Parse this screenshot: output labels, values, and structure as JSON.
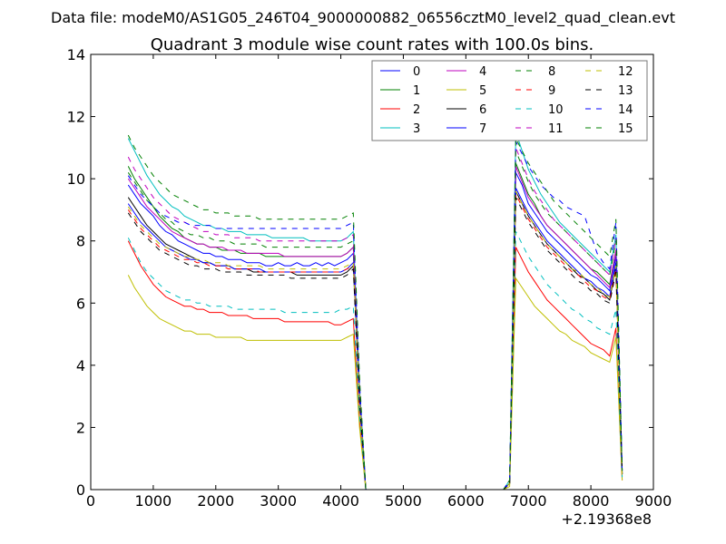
{
  "chart_data": {
    "type": "line",
    "suptitle": "Data file: modeM0/AS1G05_246T04_9000000882_06556cztM0_level2_quad_clean.evt",
    "title": "Quadrant 3 module wise count rates with 100.0s bins.",
    "xlabel": "",
    "ylabel": "",
    "xlim": [
      0,
      9000
    ],
    "ylim": [
      0,
      14
    ],
    "x_ticks": [
      0,
      1000,
      2000,
      3000,
      4000,
      5000,
      6000,
      7000,
      8000,
      9000
    ],
    "x_tick_labels": [
      "0",
      "1000",
      "2000",
      "3000",
      "4000",
      "5000",
      "6000",
      "7000",
      "8000",
      "9000"
    ],
    "y_ticks": [
      0,
      2,
      4,
      6,
      8,
      10,
      12,
      14
    ],
    "y_tick_labels": [
      "0",
      "2",
      "4",
      "6",
      "8",
      "10",
      "12",
      "14"
    ],
    "x_offset_label": "+2.19368e8",
    "grid": false,
    "legend_position": "top-right",
    "legend_columns": 4,
    "x": [
      600,
      700,
      800,
      900,
      1000,
      1100,
      1200,
      1300,
      1400,
      1500,
      1600,
      1700,
      1800,
      1900,
      2000,
      2100,
      2200,
      2300,
      2400,
      2500,
      2600,
      2700,
      2800,
      2900,
      3000,
      3100,
      3200,
      3300,
      3400,
      3500,
      3600,
      3700,
      3800,
      3900,
      4000,
      4100,
      4200,
      4300,
      4400,
      6600,
      6700,
      6800,
      6900,
      7000,
      7100,
      7200,
      7300,
      7400,
      7500,
      7600,
      7700,
      7800,
      7900,
      8000,
      8100,
      8200,
      8300,
      8400,
      8500
    ],
    "series": [
      {
        "name": "0",
        "color": "#0000ff",
        "style": "solid",
        "values": [
          9.8,
          9.5,
          9.2,
          9.0,
          8.8,
          8.5,
          8.3,
          8.2,
          8.0,
          7.9,
          7.8,
          7.7,
          7.6,
          7.6,
          7.5,
          7.5,
          7.4,
          7.4,
          7.4,
          7.3,
          7.3,
          7.3,
          7.2,
          7.2,
          7.3,
          7.2,
          7.2,
          7.3,
          7.2,
          7.2,
          7.3,
          7.2,
          7.3,
          7.2,
          7.3,
          7.4,
          7.6,
          3.0,
          0.0,
          0.0,
          0.2,
          10.2,
          9.8,
          9.2,
          8.9,
          8.6,
          8.3,
          8.1,
          7.9,
          7.7,
          7.5,
          7.3,
          7.1,
          6.9,
          6.8,
          6.6,
          6.4,
          7.5,
          0.5
        ]
      },
      {
        "name": "1",
        "color": "#008000",
        "style": "solid",
        "values": [
          10.4,
          10.0,
          9.7,
          9.4,
          9.1,
          8.8,
          8.6,
          8.4,
          8.3,
          8.1,
          8.0,
          7.9,
          7.9,
          7.8,
          7.8,
          7.7,
          7.7,
          7.7,
          7.6,
          7.6,
          7.6,
          7.6,
          7.5,
          7.5,
          7.5,
          7.5,
          7.5,
          7.5,
          7.5,
          7.5,
          7.5,
          7.5,
          7.5,
          7.5,
          7.5,
          7.6,
          7.8,
          3.1,
          0.0,
          0.0,
          0.2,
          10.5,
          10.0,
          9.5,
          9.2,
          8.8,
          8.5,
          8.3,
          8.1,
          7.9,
          7.7,
          7.5,
          7.3,
          7.1,
          7.0,
          6.8,
          6.6,
          7.7,
          0.5
        ]
      },
      {
        "name": "2",
        "color": "#ff0000",
        "style": "solid",
        "values": [
          8.0,
          7.6,
          7.2,
          6.9,
          6.6,
          6.4,
          6.2,
          6.1,
          6.0,
          5.9,
          5.9,
          5.8,
          5.8,
          5.7,
          5.7,
          5.7,
          5.6,
          5.6,
          5.6,
          5.6,
          5.5,
          5.5,
          5.5,
          5.5,
          5.5,
          5.4,
          5.4,
          5.4,
          5.4,
          5.4,
          5.4,
          5.4,
          5.4,
          5.3,
          5.3,
          5.4,
          5.5,
          2.2,
          0.0,
          0.0,
          0.2,
          7.8,
          7.4,
          7.0,
          6.7,
          6.4,
          6.1,
          5.9,
          5.7,
          5.5,
          5.3,
          5.1,
          4.9,
          4.7,
          4.6,
          4.5,
          4.3,
          5.2,
          0.3
        ]
      },
      {
        "name": "3",
        "color": "#00bfbf",
        "style": "solid",
        "values": [
          11.3,
          10.9,
          10.5,
          10.1,
          9.8,
          9.5,
          9.3,
          9.1,
          9.0,
          8.8,
          8.7,
          8.6,
          8.5,
          8.5,
          8.4,
          8.4,
          8.3,
          8.3,
          8.3,
          8.2,
          8.2,
          8.2,
          8.2,
          8.1,
          8.1,
          8.1,
          8.1,
          8.1,
          8.1,
          8.0,
          8.0,
          8.0,
          8.0,
          8.0,
          8.0,
          8.1,
          8.3,
          3.3,
          0.0,
          0.0,
          0.3,
          11.5,
          10.9,
          10.3,
          9.9,
          9.5,
          9.2,
          8.9,
          8.6,
          8.4,
          8.2,
          8.0,
          7.8,
          7.6,
          7.4,
          7.2,
          7.0,
          8.2,
          0.6
        ]
      },
      {
        "name": "4",
        "color": "#bf00bf",
        "style": "solid",
        "values": [
          10.0,
          9.7,
          9.4,
          9.1,
          8.9,
          8.7,
          8.5,
          8.3,
          8.2,
          8.1,
          8.0,
          7.9,
          7.9,
          7.8,
          7.8,
          7.8,
          7.7,
          7.7,
          7.7,
          7.6,
          7.6,
          7.6,
          7.6,
          7.6,
          7.6,
          7.5,
          7.5,
          7.5,
          7.5,
          7.5,
          7.5,
          7.5,
          7.5,
          7.5,
          7.5,
          7.6,
          7.8,
          3.1,
          0.0,
          0.0,
          0.2,
          10.4,
          9.9,
          9.4,
          9.1,
          8.8,
          8.5,
          8.3,
          8.1,
          7.9,
          7.7,
          7.5,
          7.3,
          7.1,
          6.9,
          6.7,
          6.5,
          7.7,
          0.5
        ]
      },
      {
        "name": "5",
        "color": "#bfbf00",
        "style": "solid",
        "values": [
          6.9,
          6.5,
          6.2,
          5.9,
          5.7,
          5.5,
          5.4,
          5.3,
          5.2,
          5.1,
          5.1,
          5.0,
          5.0,
          5.0,
          4.9,
          4.9,
          4.9,
          4.9,
          4.9,
          4.8,
          4.8,
          4.8,
          4.8,
          4.8,
          4.8,
          4.8,
          4.8,
          4.8,
          4.8,
          4.8,
          4.8,
          4.8,
          4.8,
          4.8,
          4.8,
          4.9,
          5.0,
          2.0,
          0.0,
          0.0,
          0.1,
          6.8,
          6.5,
          6.2,
          5.9,
          5.7,
          5.5,
          5.3,
          5.1,
          5.0,
          4.8,
          4.7,
          4.6,
          4.4,
          4.3,
          4.2,
          4.1,
          4.9,
          0.3
        ]
      },
      {
        "name": "6",
        "color": "#000000",
        "style": "solid",
        "values": [
          9.4,
          9.1,
          8.8,
          8.5,
          8.3,
          8.1,
          7.9,
          7.8,
          7.7,
          7.6,
          7.5,
          7.4,
          7.3,
          7.3,
          7.2,
          7.2,
          7.2,
          7.1,
          7.1,
          7.1,
          7.0,
          7.0,
          7.0,
          7.0,
          7.0,
          7.0,
          7.0,
          6.9,
          6.9,
          6.9,
          6.9,
          6.9,
          6.9,
          6.9,
          6.9,
          7.0,
          7.2,
          2.9,
          0.0,
          0.0,
          0.2,
          9.6,
          9.2,
          8.8,
          8.5,
          8.2,
          7.9,
          7.7,
          7.5,
          7.3,
          7.1,
          6.9,
          6.8,
          6.6,
          6.4,
          6.3,
          6.1,
          7.2,
          0.5
        ]
      },
      {
        "name": "7",
        "color": "#0000ff",
        "style": "solid",
        "values": [
          9.2,
          8.9,
          8.6,
          8.4,
          8.2,
          8.0,
          7.8,
          7.7,
          7.6,
          7.5,
          7.4,
          7.4,
          7.3,
          7.3,
          7.2,
          7.2,
          7.2,
          7.1,
          7.1,
          7.1,
          7.1,
          7.1,
          7.0,
          7.0,
          7.0,
          7.0,
          7.0,
          7.0,
          7.0,
          7.0,
          7.0,
          7.0,
          7.0,
          7.0,
          7.0,
          7.1,
          7.3,
          2.9,
          0.0,
          0.0,
          0.2,
          9.7,
          9.3,
          8.9,
          8.6,
          8.3,
          8.0,
          7.8,
          7.6,
          7.4,
          7.2,
          7.0,
          6.8,
          6.7,
          6.5,
          6.4,
          6.2,
          7.3,
          0.5
        ]
      },
      {
        "name": "8",
        "color": "#008000",
        "style": "dashed",
        "values": [
          10.2,
          9.9,
          9.6,
          9.3,
          9.1,
          8.9,
          8.7,
          8.6,
          8.4,
          8.3,
          8.2,
          8.2,
          8.1,
          8.1,
          8.0,
          8.0,
          8.0,
          7.9,
          7.9,
          7.9,
          7.9,
          7.9,
          7.8,
          7.8,
          7.8,
          7.8,
          7.8,
          7.8,
          7.8,
          7.8,
          7.8,
          7.8,
          7.8,
          7.8,
          7.8,
          7.9,
          8.0,
          3.2,
          0.0,
          0.0,
          0.3,
          10.9,
          10.4,
          9.9,
          9.5,
          9.2,
          8.9,
          8.7,
          8.5,
          8.3,
          8.1,
          7.9,
          7.7,
          7.5,
          7.3,
          7.1,
          6.9,
          8.0,
          0.6
        ]
      },
      {
        "name": "9",
        "color": "#ff0000",
        "style": "dashed",
        "values": [
          9.0,
          8.7,
          8.4,
          8.2,
          8.0,
          7.8,
          7.7,
          7.6,
          7.5,
          7.4,
          7.4,
          7.3,
          7.3,
          7.2,
          7.2,
          7.2,
          7.1,
          7.1,
          7.1,
          7.1,
          7.1,
          7.0,
          7.0,
          7.0,
          7.0,
          7.0,
          7.0,
          7.0,
          7.0,
          7.0,
          7.0,
          7.0,
          7.0,
          7.0,
          7.0,
          7.1,
          7.2,
          2.9,
          0.0,
          0.0,
          0.2,
          9.5,
          9.1,
          8.7,
          8.4,
          8.1,
          7.8,
          7.6,
          7.4,
          7.2,
          7.0,
          6.9,
          6.7,
          6.5,
          6.4,
          6.2,
          6.1,
          7.1,
          0.5
        ]
      },
      {
        "name": "10",
        "color": "#00bfbf",
        "style": "dashed",
        "values": [
          8.1,
          7.7,
          7.3,
          7.0,
          6.8,
          6.6,
          6.4,
          6.3,
          6.2,
          6.1,
          6.1,
          6.0,
          6.0,
          5.9,
          5.9,
          5.9,
          5.9,
          5.8,
          5.8,
          5.8,
          5.8,
          5.8,
          5.8,
          5.8,
          5.8,
          5.7,
          5.7,
          5.7,
          5.7,
          5.7,
          5.7,
          5.7,
          5.7,
          5.7,
          5.8,
          5.8,
          5.9,
          2.4,
          0.0,
          0.0,
          0.2,
          8.3,
          7.9,
          7.5,
          7.2,
          6.9,
          6.6,
          6.4,
          6.2,
          6.0,
          5.8,
          5.7,
          5.5,
          5.4,
          5.2,
          5.1,
          5.0,
          5.8,
          0.4
        ]
      },
      {
        "name": "11",
        "color": "#bf00bf",
        "style": "dashed",
        "values": [
          10.7,
          10.3,
          10.0,
          9.7,
          9.4,
          9.2,
          9.0,
          8.8,
          8.7,
          8.6,
          8.5,
          8.4,
          8.3,
          8.3,
          8.2,
          8.2,
          8.2,
          8.1,
          8.1,
          8.1,
          8.1,
          8.0,
          8.0,
          8.0,
          8.0,
          8.0,
          8.0,
          8.0,
          8.0,
          8.0,
          8.0,
          8.0,
          8.0,
          8.0,
          8.0,
          8.1,
          8.2,
          3.3,
          0.0,
          0.0,
          0.3,
          11.0,
          10.5,
          10.0,
          9.6,
          9.3,
          9.0,
          8.7,
          8.5,
          8.3,
          8.1,
          7.9,
          7.7,
          7.5,
          7.3,
          7.1,
          6.9,
          8.1,
          0.6
        ]
      },
      {
        "name": "12",
        "color": "#bfbf00",
        "style": "dashed",
        "values": [
          9.1,
          8.8,
          8.5,
          8.3,
          8.1,
          7.9,
          7.8,
          7.7,
          7.6,
          7.5,
          7.5,
          7.4,
          7.4,
          7.3,
          7.3,
          7.3,
          7.2,
          7.2,
          7.2,
          7.2,
          7.2,
          7.2,
          7.1,
          7.1,
          7.1,
          7.1,
          7.1,
          7.1,
          7.1,
          7.1,
          7.1,
          7.1,
          7.1,
          7.1,
          7.1,
          7.2,
          7.3,
          2.9,
          0.0,
          0.0,
          0.2,
          9.6,
          9.2,
          8.8,
          8.5,
          8.2,
          7.9,
          7.7,
          7.5,
          7.3,
          7.1,
          7.0,
          6.8,
          6.6,
          6.5,
          6.3,
          6.2,
          7.2,
          0.5
        ]
      },
      {
        "name": "13",
        "color": "#000000",
        "style": "dashed",
        "values": [
          8.9,
          8.6,
          8.3,
          8.1,
          7.9,
          7.7,
          7.6,
          7.5,
          7.4,
          7.3,
          7.2,
          7.2,
          7.1,
          7.1,
          7.1,
          7.0,
          7.0,
          7.0,
          7.0,
          6.9,
          6.9,
          6.9,
          6.9,
          6.9,
          6.9,
          6.9,
          6.8,
          6.8,
          6.8,
          6.8,
          6.8,
          6.8,
          6.8,
          6.8,
          6.8,
          6.9,
          7.1,
          2.8,
          0.0,
          0.0,
          0.2,
          9.4,
          9.0,
          8.6,
          8.3,
          8.0,
          7.7,
          7.5,
          7.3,
          7.1,
          6.9,
          6.7,
          6.6,
          6.4,
          6.3,
          6.1,
          6.0,
          7.0,
          0.5
        ]
      },
      {
        "name": "14",
        "color": "#0000ff",
        "style": "dashed",
        "values": [
          10.1,
          9.8,
          9.5,
          9.3,
          9.1,
          8.9,
          8.8,
          8.7,
          8.6,
          8.6,
          8.5,
          8.5,
          8.5,
          8.5,
          8.4,
          8.4,
          8.4,
          8.4,
          8.4,
          8.4,
          8.4,
          8.4,
          8.4,
          8.4,
          8.4,
          8.4,
          8.4,
          8.4,
          8.4,
          8.4,
          8.4,
          8.4,
          8.4,
          8.4,
          8.4,
          8.5,
          8.6,
          3.4,
          0.0,
          0.0,
          0.3,
          11.2,
          10.8,
          10.4,
          10.1,
          9.8,
          9.6,
          9.4,
          9.3,
          9.1,
          9.0,
          8.9,
          8.8,
          8.2,
          7.6,
          7.3,
          7.1,
          8.6,
          0.6
        ]
      },
      {
        "name": "15",
        "color": "#008000",
        "style": "dashed",
        "values": [
          11.4,
          11.0,
          10.7,
          10.4,
          10.1,
          9.9,
          9.7,
          9.5,
          9.4,
          9.3,
          9.2,
          9.1,
          9.0,
          9.0,
          8.9,
          8.9,
          8.9,
          8.8,
          8.8,
          8.8,
          8.8,
          8.7,
          8.7,
          8.7,
          8.7,
          8.7,
          8.7,
          8.7,
          8.7,
          8.7,
          8.7,
          8.7,
          8.7,
          8.7,
          8.7,
          8.8,
          8.9,
          3.6,
          0.0,
          0.0,
          0.3,
          11.3,
          10.9,
          10.5,
          10.2,
          9.9,
          9.6,
          9.3,
          9.1,
          8.9,
          8.7,
          8.5,
          8.3,
          8.1,
          7.9,
          7.7,
          7.5,
          8.7,
          0.6
        ]
      }
    ]
  }
}
